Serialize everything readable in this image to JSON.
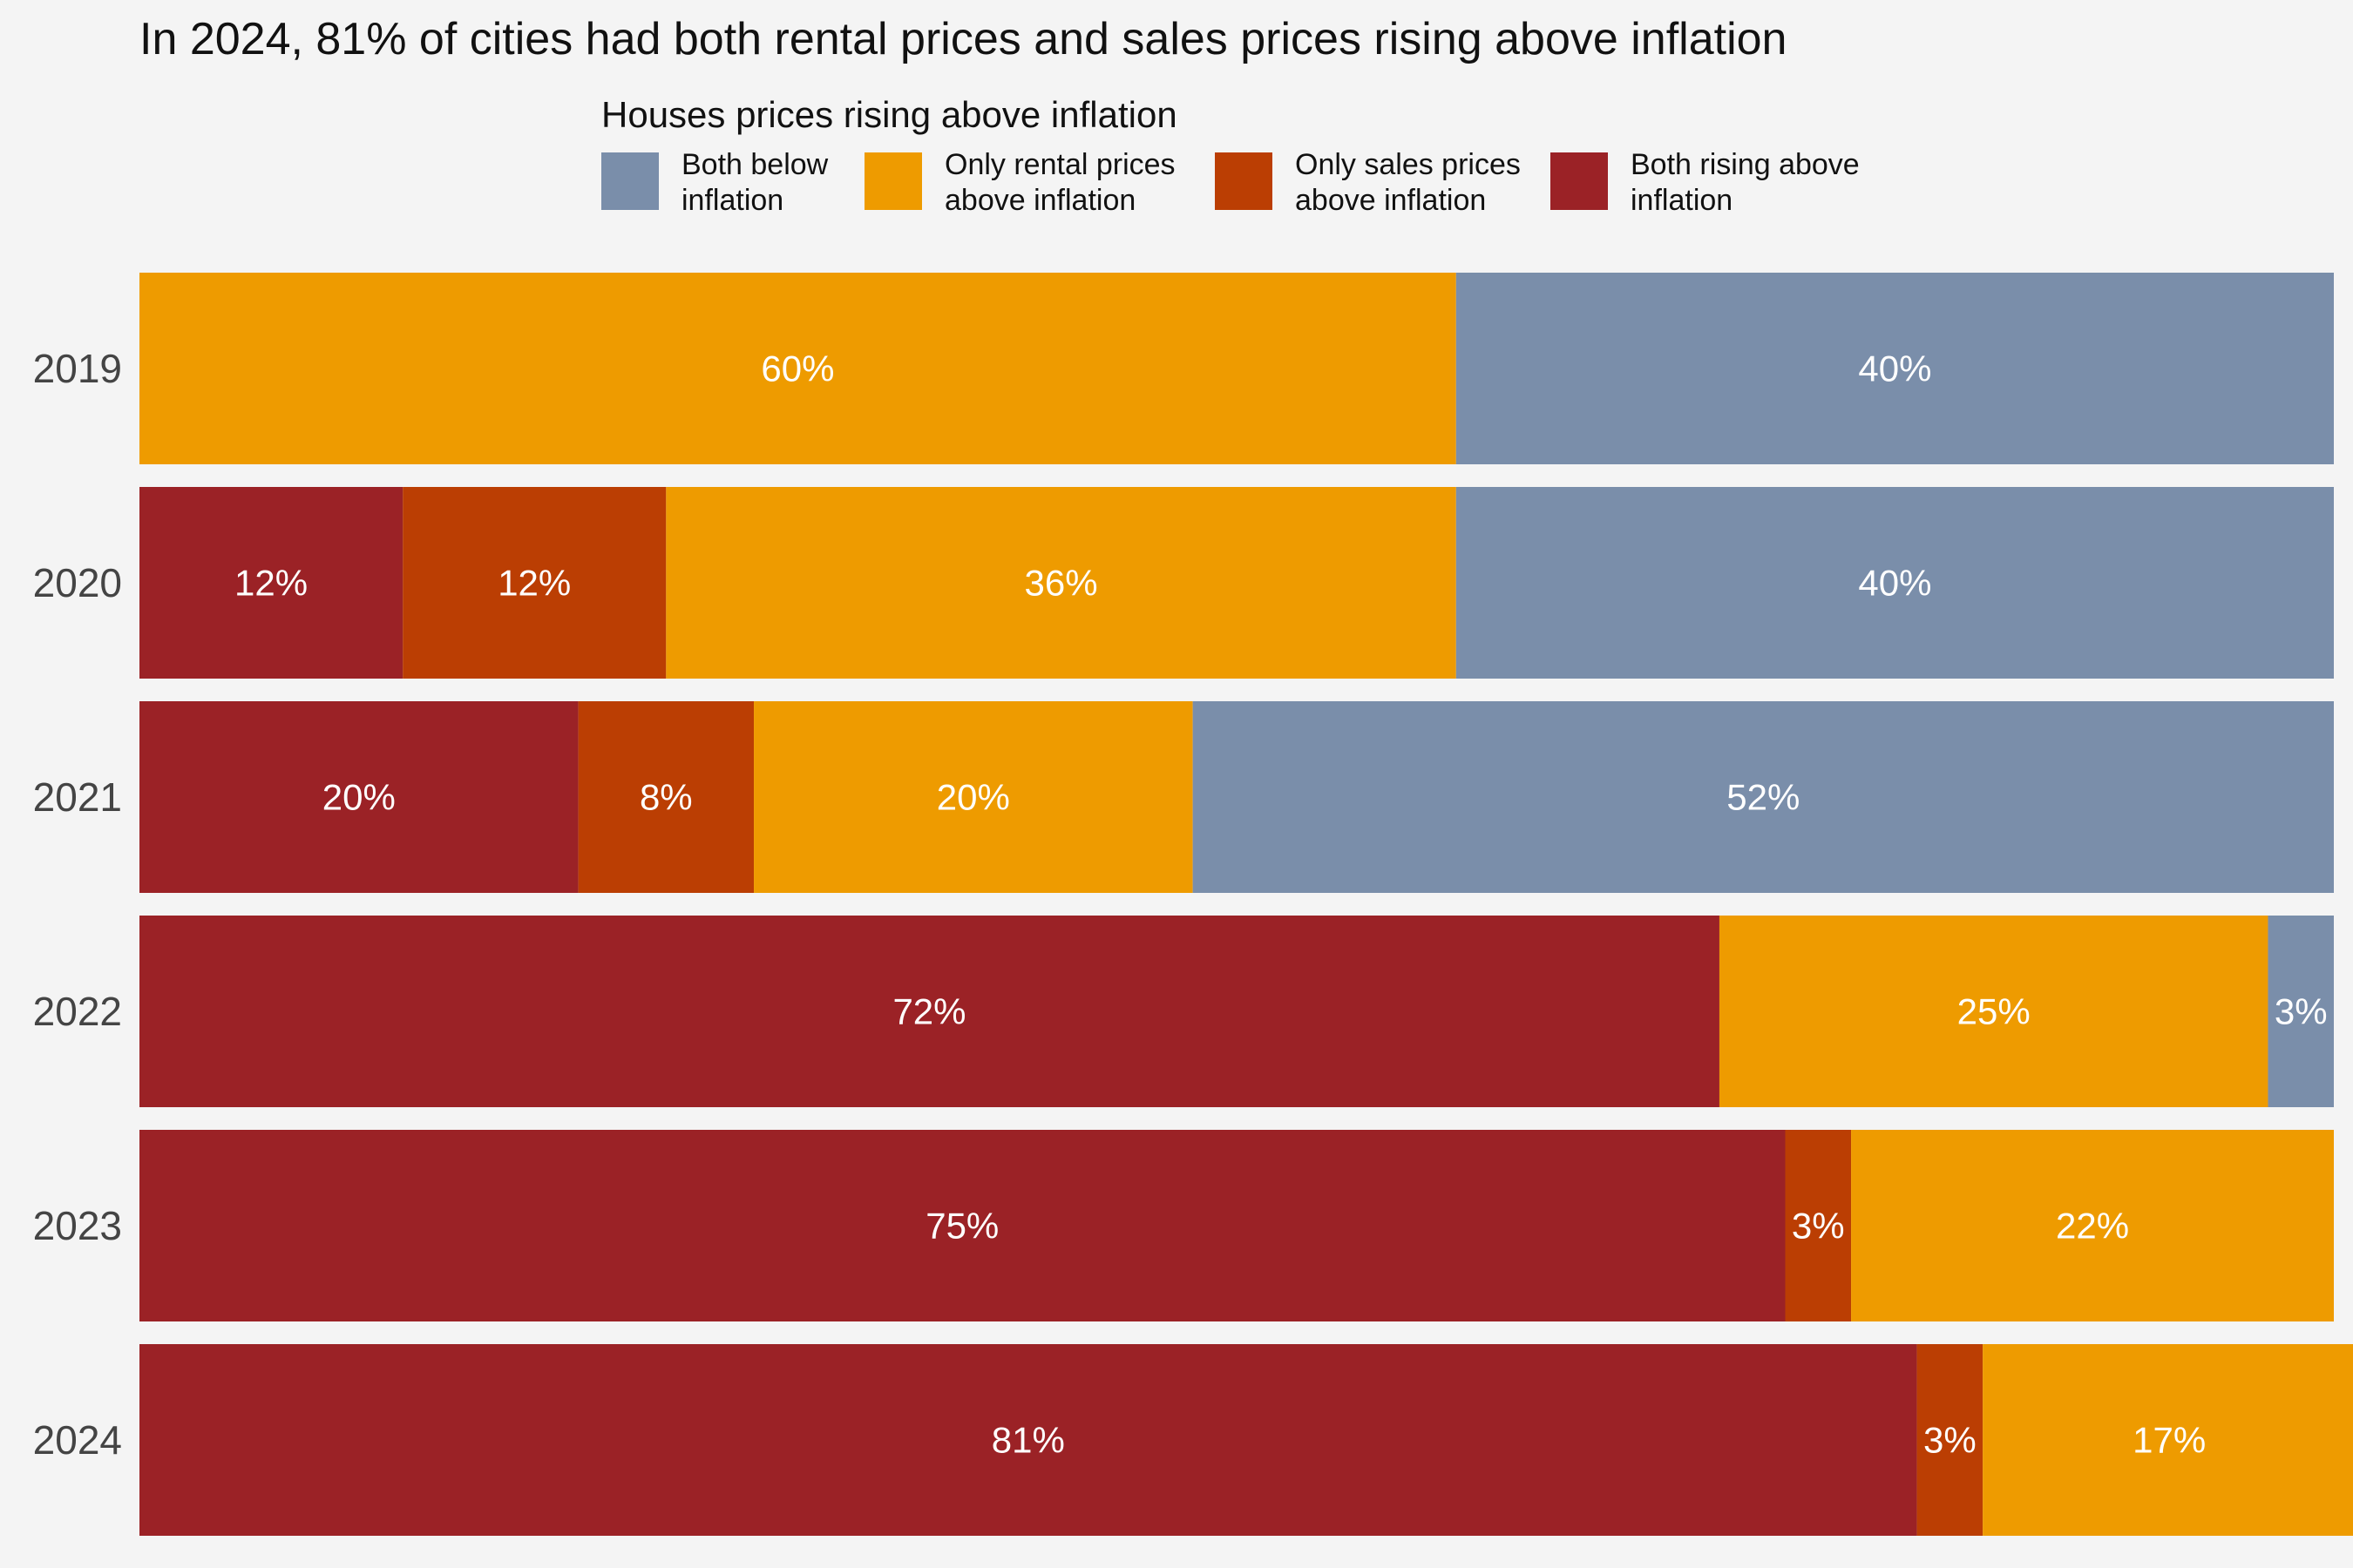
{
  "chart_data": {
    "type": "bar",
    "orientation": "horizontal",
    "stacked": true,
    "normalized_percent": true,
    "title": "In 2024, 81% of cities had both rental prices and sales prices rising above inflation",
    "legend": {
      "title": "Houses prices rising above inflation",
      "placement": "top",
      "entries": [
        {
          "label_lines": [
            "Both below",
            "inflation"
          ],
          "color": "#7a8eaa"
        },
        {
          "label_lines": [
            "Only rental prices",
            "above inflation"
          ],
          "color": "#ee9b00"
        },
        {
          "label_lines": [
            "Only sales prices",
            "above inflation"
          ],
          "color": "#bb3e03"
        },
        {
          "label_lines": [
            "Both rising above",
            "inflation"
          ],
          "color": "#9b2226"
        }
      ]
    },
    "categories": [
      "2019",
      "2020",
      "2021",
      "2022",
      "2023",
      "2024"
    ],
    "stack_order": [
      "Both rising above inflation",
      "Only sales prices above inflation",
      "Only rental prices above inflation",
      "Both below inflation"
    ],
    "series": [
      {
        "color": "#9b2226",
        "values": [
          0,
          12,
          20,
          72,
          75,
          81
        ],
        "labels": [
          "",
          "12%",
          "20%",
          "72%",
          "75%",
          "81%"
        ]
      },
      {
        "color": "#bb3e03",
        "values": [
          0,
          12,
          8,
          0,
          3,
          3
        ],
        "labels": [
          "",
          "12%",
          "8%",
          "",
          "3%",
          "3%"
        ]
      },
      {
        "color": "#ee9b00",
        "values": [
          60,
          36,
          20,
          25,
          22,
          17
        ],
        "labels": [
          "60%",
          "36%",
          "20%",
          "25%",
          "22%",
          "17%"
        ]
      },
      {
        "color": "#7a8eaa",
        "values": [
          40,
          40,
          52,
          3,
          0,
          0
        ],
        "labels": [
          "40%",
          "40%",
          "52%",
          "3%",
          "",
          ""
        ]
      }
    ],
    "xlim": [
      0,
      100
    ],
    "grid": false,
    "label_color": "#ffffff"
  }
}
